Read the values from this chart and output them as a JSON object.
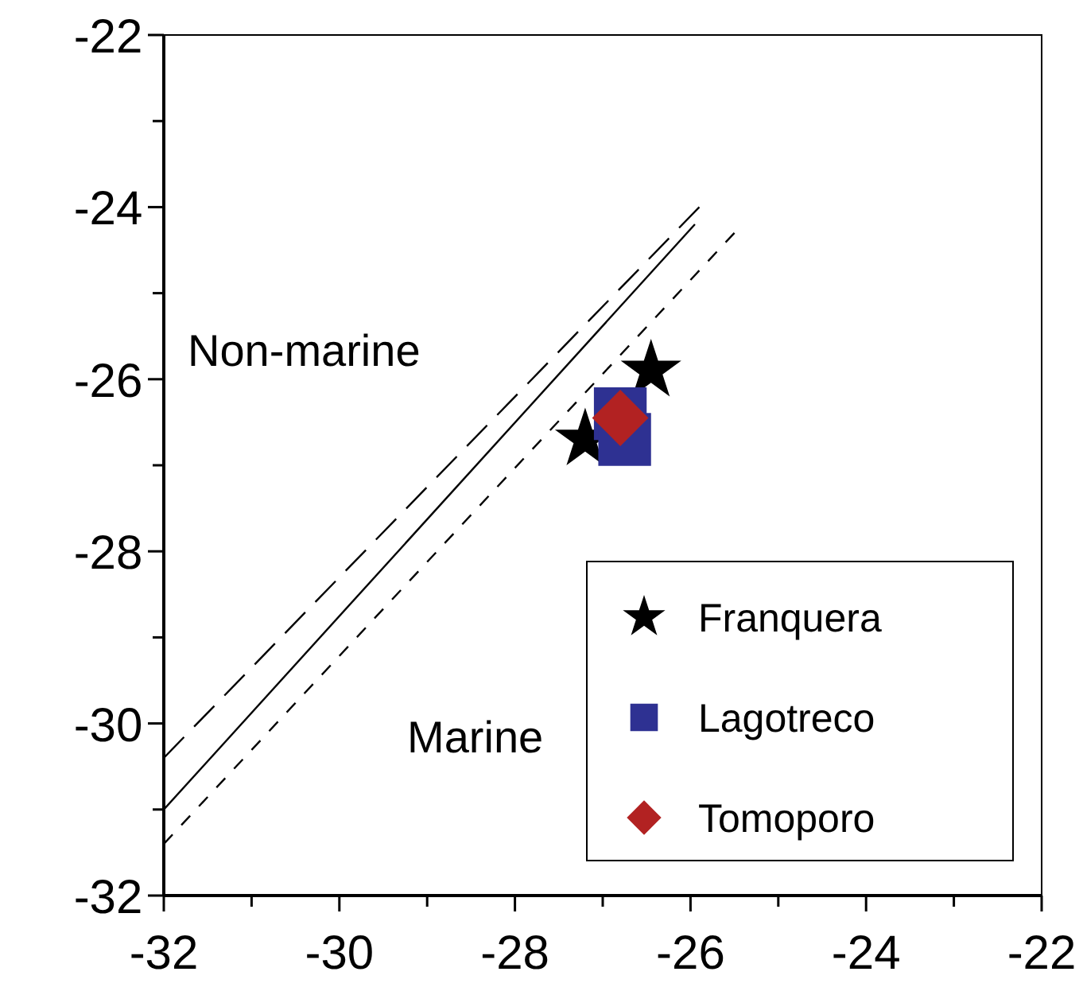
{
  "chart_data": {
    "type": "scatter",
    "xlim": [
      -32,
      -22
    ],
    "ylim": [
      -32,
      -22
    ],
    "xticks": [
      -32,
      {
        "value": -31,
        "label": null
      },
      -30,
      {
        "value": -29,
        "label": null
      },
      -28,
      {
        "value": -27,
        "label": null
      },
      -26,
      {
        "value": -25,
        "label": null
      },
      -24,
      {
        "value": -23,
        "label": null
      },
      -22
    ],
    "yticks": [
      -32,
      {
        "value": -31,
        "label": null
      },
      -30,
      {
        "value": -29,
        "label": null
      },
      -28,
      {
        "value": -27,
        "label": null
      },
      -26,
      {
        "value": -25,
        "label": null
      },
      -24,
      {
        "value": -23,
        "label": null
      },
      -22
    ],
    "series": [
      {
        "type": "line",
        "color": "#000000",
        "line_style": "dashed",
        "x": [
          -32,
          -25.9
        ],
        "values": [
          -30.4,
          -24.0
        ]
      },
      {
        "type": "line",
        "color": "#000000",
        "line_style": "solid",
        "x": [
          -32,
          -25.95
        ],
        "values": [
          -31.0,
          -24.2
        ]
      },
      {
        "type": "line",
        "color": "#000000",
        "line_style": "dotted",
        "x": [
          -32,
          -25.5
        ],
        "values": [
          -31.4,
          -24.3
        ]
      },
      {
        "name": "Franquera",
        "color": "#000000",
        "marker": "star",
        "x": [
          -27.2,
          -26.45
        ],
        "values": [
          -26.7,
          -25.9
        ]
      },
      {
        "name": "Lagotreco",
        "color": "#2e3192",
        "marker": "square",
        "x": [
          -26.8,
          -26.75
        ],
        "values": [
          -26.4,
          -26.7
        ]
      },
      {
        "name": "Tomoporo",
        "color": "#b22222",
        "marker": "diamond",
        "x": [
          -26.8
        ],
        "values": [
          -26.45
        ]
      }
    ],
    "annotations": [
      "Non-marine",
      "Marine"
    ],
    "legend": "bottom right",
    "grid": false
  }
}
